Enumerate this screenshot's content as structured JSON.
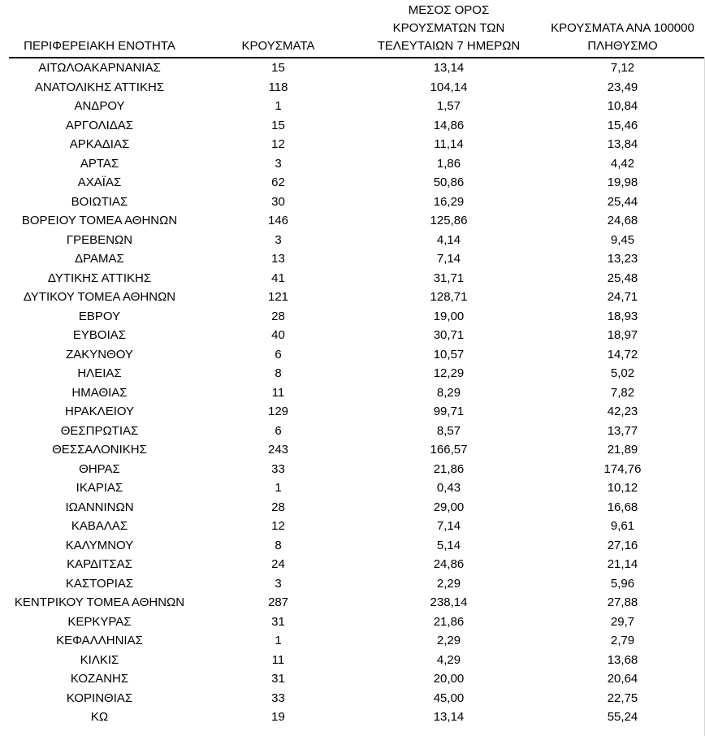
{
  "table": {
    "columns": [
      {
        "label": "ΠΕΡΙΦΕΡΕΙΑΚΗ ΕΝΟΤΗΤΑ"
      },
      {
        "label": "ΚΡΟΥΣΜΑΤΑ"
      },
      {
        "label": "ΜΕΣΟΣ ΟΡΟΣ\nΚΡΟΥΣΜΑΤΩΝ ΤΩΝ\nΤΕΛΕΥΤΑΙΩΝ 7 ΗΜΕΡΩΝ"
      },
      {
        "label": "ΚΡΟΥΣΜΑΤΑ ΑΝΑ 100000\nΠΛΗΘΥΣΜΟ"
      }
    ],
    "rows": [
      [
        "ΑΙΤΩΛΟΑΚΑΡΝΑΝΙΑΣ",
        "15",
        "13,14",
        "7,12"
      ],
      [
        "ΑΝΑΤΟΛΙΚΗΣ ΑΤΤΙΚΗΣ",
        "118",
        "104,14",
        "23,49"
      ],
      [
        "ΑΝΔΡΟΥ",
        "1",
        "1,57",
        "10,84"
      ],
      [
        "ΑΡΓΟΛΙΔΑΣ",
        "15",
        "14,86",
        "15,46"
      ],
      [
        "ΑΡΚΑΔΙΑΣ",
        "12",
        "11,14",
        "13,84"
      ],
      [
        "ΑΡΤΑΣ",
        "3",
        "1,86",
        "4,42"
      ],
      [
        "ΑΧΑΪΑΣ",
        "62",
        "50,86",
        "19,98"
      ],
      [
        "ΒΟΙΩΤΙΑΣ",
        "30",
        "16,29",
        "25,44"
      ],
      [
        "ΒΟΡΕΙΟΥ ΤΟΜΕΑ ΑΘΗΝΩΝ",
        "146",
        "125,86",
        "24,68"
      ],
      [
        "ΓΡΕΒΕΝΩΝ",
        "3",
        "4,14",
        "9,45"
      ],
      [
        "ΔΡΑΜΑΣ",
        "13",
        "7,14",
        "13,23"
      ],
      [
        "ΔΥΤΙΚΗΣ ΑΤΤΙΚΗΣ",
        "41",
        "31,71",
        "25,48"
      ],
      [
        "ΔΥΤΙΚΟΥ ΤΟΜΕΑ ΑΘΗΝΩΝ",
        "121",
        "128,71",
        "24,71"
      ],
      [
        "ΕΒΡΟΥ",
        "28",
        "19,00",
        "18,93"
      ],
      [
        "ΕΥΒΟΙΑΣ",
        "40",
        "30,71",
        "18,97"
      ],
      [
        "ΖΑΚΥΝΘΟΥ",
        "6",
        "10,57",
        "14,72"
      ],
      [
        "ΗΛΕΙΑΣ",
        "8",
        "12,29",
        "5,02"
      ],
      [
        "ΗΜΑΘΙΑΣ",
        "11",
        "8,29",
        "7,82"
      ],
      [
        "ΗΡΑΚΛΕΙΟΥ",
        "129",
        "99,71",
        "42,23"
      ],
      [
        "ΘΕΣΠΡΩΤΙΑΣ",
        "6",
        "8,57",
        "13,77"
      ],
      [
        "ΘΕΣΣΑΛΟΝΙΚΗΣ",
        "243",
        "166,57",
        "21,89"
      ],
      [
        "ΘΗΡΑΣ",
        "33",
        "21,86",
        "174,76"
      ],
      [
        "ΙΚΑΡΙΑΣ",
        "1",
        "0,43",
        "10,12"
      ],
      [
        "ΙΩΑΝΝΙΝΩΝ",
        "28",
        "29,00",
        "16,68"
      ],
      [
        "ΚΑΒΑΛΑΣ",
        "12",
        "7,14",
        "9,61"
      ],
      [
        "ΚΑΛΥΜΝΟΥ",
        "8",
        "5,14",
        "27,16"
      ],
      [
        "ΚΑΡΔΙΤΣΑΣ",
        "24",
        "24,86",
        "21,14"
      ],
      [
        "ΚΑΣΤΟΡΙΑΣ",
        "3",
        "2,29",
        "5,96"
      ],
      [
        "ΚΕΝΤΡΙΚΟΥ ΤΟΜΕΑ ΑΘΗΝΩΝ",
        "287",
        "238,14",
        "27,88"
      ],
      [
        "ΚΕΡΚΥΡΑΣ",
        "31",
        "21,86",
        "29,7"
      ],
      [
        "ΚΕΦΑΛΛΗΝΙΑΣ",
        "1",
        "2,29",
        "2,79"
      ],
      [
        "ΚΙΛΚΙΣ",
        "11",
        "4,29",
        "13,68"
      ],
      [
        "ΚΟΖΑΝΗΣ",
        "31",
        "20,00",
        "20,64"
      ],
      [
        "ΚΟΡΙΝΘΙΑΣ",
        "33",
        "45,00",
        "22,75"
      ],
      [
        "ΚΩ",
        "19",
        "13,14",
        "55,24"
      ]
    ]
  },
  "colors": {
    "background": "#ffffff",
    "text": "#000000",
    "header_rule": "#1a1a1a",
    "right_edge_line": "#d6d6d6"
  }
}
